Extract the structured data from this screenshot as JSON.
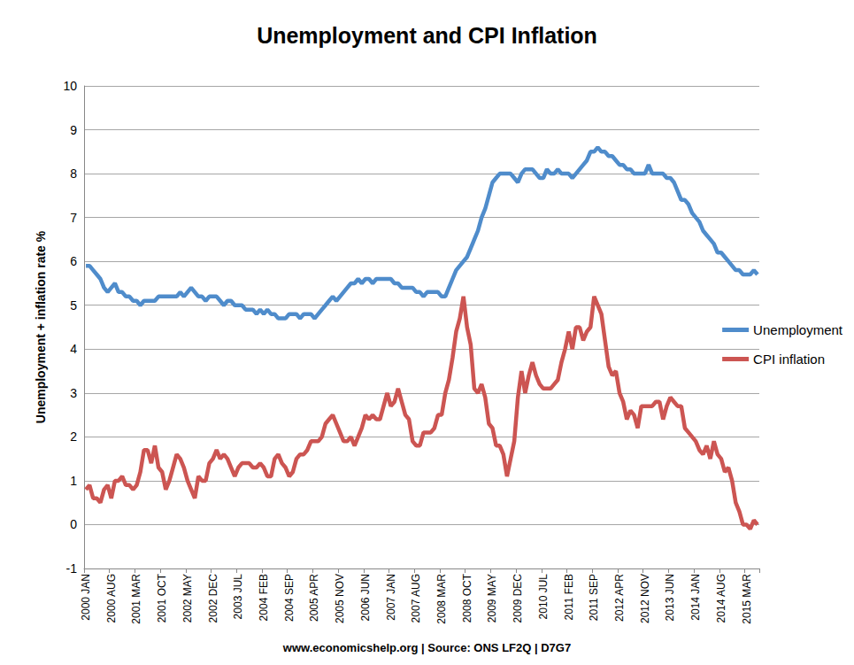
{
  "chart_data": {
    "type": "line",
    "title": "Unemployment and CPI Inflation",
    "y_label": "Unemployment + inflation rate %",
    "caption": "www.economicshelp.org | Source: ONS LF2Q | D7G7",
    "categories": [
      "2000 JAN",
      null,
      null,
      null,
      null,
      null,
      null,
      "2000 AUG",
      null,
      null,
      null,
      null,
      null,
      null,
      "2001 MAR",
      null,
      null,
      null,
      null,
      null,
      null,
      "2001 OCT",
      null,
      null,
      null,
      null,
      null,
      null,
      "2002 MAY",
      null,
      null,
      null,
      null,
      null,
      null,
      "2002 DEC",
      null,
      null,
      null,
      null,
      null,
      null,
      "2003 JUL",
      null,
      null,
      null,
      null,
      null,
      null,
      "2004 FEB",
      null,
      null,
      null,
      null,
      null,
      null,
      "2004 SEP",
      null,
      null,
      null,
      null,
      null,
      null,
      "2005 APR",
      null,
      null,
      null,
      null,
      null,
      null,
      "2005 NOV",
      null,
      null,
      null,
      null,
      null,
      null,
      "2006 JUN",
      null,
      null,
      null,
      null,
      null,
      null,
      "2007 JAN",
      null,
      null,
      null,
      null,
      null,
      null,
      "2007 AUG",
      null,
      null,
      null,
      null,
      null,
      null,
      "2008 MAR",
      null,
      null,
      null,
      null,
      null,
      null,
      "2008 OCT",
      null,
      null,
      null,
      null,
      null,
      null,
      "2009 MAY",
      null,
      null,
      null,
      null,
      null,
      null,
      "2009 DEC",
      null,
      null,
      null,
      null,
      null,
      null,
      "2010 JUL",
      null,
      null,
      null,
      null,
      null,
      null,
      "2011 FEB",
      null,
      null,
      null,
      null,
      null,
      null,
      "2011 SEP",
      null,
      null,
      null,
      null,
      null,
      null,
      "2012 APR",
      null,
      null,
      null,
      null,
      null,
      null,
      "2012 NOV",
      null,
      null,
      null,
      null,
      null,
      null,
      "2013 JUN",
      null,
      null,
      null,
      null,
      null,
      null,
      "2014 JAN",
      null,
      null,
      null,
      null,
      null,
      null,
      "2014 AUG",
      null,
      null,
      null,
      null,
      null,
      null,
      "2015 MAR",
      null,
      null,
      null
    ],
    "series": [
      {
        "name": "Unemployment",
        "color": "#4f8ccb",
        "values": [
          5.9,
          5.9,
          5.8,
          5.7,
          5.6,
          5.4,
          5.3,
          5.4,
          5.5,
          5.3,
          5.3,
          5.2,
          5.2,
          5.1,
          5.1,
          5.0,
          5.1,
          5.1,
          5.1,
          5.1,
          5.2,
          5.2,
          5.2,
          5.2,
          5.2,
          5.2,
          5.3,
          5.2,
          5.3,
          5.4,
          5.3,
          5.2,
          5.2,
          5.1,
          5.2,
          5.2,
          5.2,
          5.1,
          5.0,
          5.1,
          5.1,
          5.0,
          5.0,
          5.0,
          4.9,
          4.9,
          4.9,
          4.8,
          4.9,
          4.8,
          4.9,
          4.8,
          4.8,
          4.7,
          4.7,
          4.7,
          4.8,
          4.8,
          4.8,
          4.7,
          4.8,
          4.8,
          4.8,
          4.7,
          4.8,
          4.9,
          5.0,
          5.1,
          5.2,
          5.1,
          5.2,
          5.3,
          5.4,
          5.5,
          5.5,
          5.6,
          5.5,
          5.6,
          5.6,
          5.5,
          5.6,
          5.6,
          5.6,
          5.6,
          5.6,
          5.5,
          5.5,
          5.4,
          5.4,
          5.4,
          5.4,
          5.3,
          5.3,
          5.2,
          5.3,
          5.3,
          5.3,
          5.3,
          5.2,
          5.2,
          5.4,
          5.6,
          5.8,
          5.9,
          6.0,
          6.1,
          6.3,
          6.5,
          6.7,
          7.0,
          7.2,
          7.5,
          7.8,
          7.9,
          8.0,
          8.0,
          8.0,
          8.0,
          7.9,
          7.8,
          8.0,
          8.1,
          8.1,
          8.1,
          8.0,
          7.9,
          7.9,
          8.1,
          8.0,
          8.0,
          8.1,
          8.0,
          8.0,
          8.0,
          7.9,
          8.0,
          8.1,
          8.2,
          8.3,
          8.5,
          8.5,
          8.6,
          8.5,
          8.5,
          8.4,
          8.4,
          8.3,
          8.2,
          8.2,
          8.1,
          8.1,
          8.0,
          8.0,
          8.0,
          8.0,
          8.2,
          8.0,
          8.0,
          8.0,
          8.0,
          7.9,
          7.9,
          7.8,
          7.6,
          7.4,
          7.4,
          7.3,
          7.1,
          7.0,
          6.9,
          6.7,
          6.6,
          6.5,
          6.4,
          6.2,
          6.2,
          6.1,
          6.0,
          5.9,
          5.8,
          5.8,
          5.7,
          5.7,
          5.7,
          5.8,
          5.7
        ]
      },
      {
        "name": "CPI inflation",
        "color": "#cc5552",
        "values": [
          0.8,
          0.9,
          0.6,
          0.6,
          0.5,
          0.8,
          0.9,
          0.6,
          1.0,
          1.0,
          1.1,
          0.9,
          0.9,
          0.8,
          0.9,
          1.2,
          1.7,
          1.7,
          1.4,
          1.8,
          1.3,
          1.2,
          0.8,
          1.0,
          1.3,
          1.6,
          1.5,
          1.3,
          1.0,
          0.8,
          0.6,
          1.1,
          1.0,
          1.0,
          1.4,
          1.5,
          1.7,
          1.5,
          1.6,
          1.5,
          1.3,
          1.1,
          1.3,
          1.4,
          1.4,
          1.4,
          1.3,
          1.3,
          1.4,
          1.3,
          1.1,
          1.1,
          1.5,
          1.6,
          1.4,
          1.3,
          1.1,
          1.2,
          1.5,
          1.6,
          1.6,
          1.7,
          1.9,
          1.9,
          1.9,
          2.0,
          2.3,
          2.4,
          2.5,
          2.3,
          2.1,
          1.9,
          1.9,
          2.0,
          1.8,
          2.0,
          2.2,
          2.5,
          2.4,
          2.5,
          2.4,
          2.4,
          2.7,
          3.0,
          2.7,
          2.8,
          3.1,
          2.8,
          2.5,
          2.4,
          1.9,
          1.8,
          1.8,
          2.1,
          2.1,
          2.1,
          2.2,
          2.5,
          2.5,
          3.0,
          3.3,
          3.8,
          4.4,
          4.7,
          5.2,
          4.5,
          4.1,
          3.1,
          3.0,
          3.2,
          2.9,
          2.3,
          2.2,
          1.8,
          1.8,
          1.6,
          1.1,
          1.5,
          1.9,
          2.9,
          3.5,
          3.0,
          3.4,
          3.7,
          3.4,
          3.2,
          3.1,
          3.1,
          3.1,
          3.2,
          3.3,
          3.7,
          4.0,
          4.4,
          4.0,
          4.5,
          4.5,
          4.2,
          4.4,
          4.5,
          5.2,
          5.0,
          4.8,
          4.2,
          3.6,
          3.4,
          3.5,
          3.0,
          2.8,
          2.4,
          2.6,
          2.5,
          2.2,
          2.7,
          2.7,
          2.7,
          2.7,
          2.8,
          2.8,
          2.4,
          2.7,
          2.9,
          2.8,
          2.7,
          2.7,
          2.2,
          2.1,
          2.0,
          1.9,
          1.7,
          1.6,
          1.8,
          1.5,
          1.9,
          1.6,
          1.5,
          1.2,
          1.3,
          1.0,
          0.5,
          0.3,
          0.0,
          0.0,
          -0.1,
          0.1,
          0.0
        ]
      }
    ],
    "ylim": [
      -1,
      10
    ],
    "yticks": [
      -1,
      0,
      1,
      2,
      3,
      4,
      5,
      6,
      7,
      8,
      9,
      10
    ],
    "grid": true,
    "legend": "right"
  }
}
